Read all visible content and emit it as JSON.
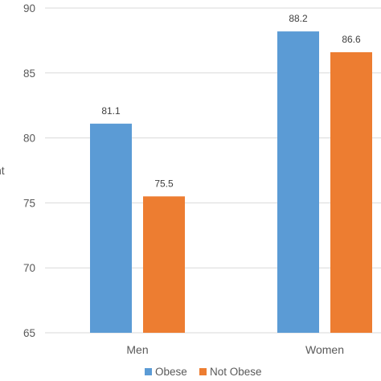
{
  "chart_data": {
    "type": "bar",
    "title": "",
    "xlabel": "",
    "ylabel": "nt",
    "categories": [
      "Men",
      "Women"
    ],
    "series": [
      {
        "name": "Obese",
        "values": [
          81.1,
          88.2
        ],
        "color": "#5B9BD5"
      },
      {
        "name": "Not Obese",
        "values": [
          75.5,
          86.6
        ],
        "color": "#ED7D31"
      }
    ],
    "data_labels": [
      [
        "81.1",
        "88.2"
      ],
      [
        "75.5",
        "86.6"
      ]
    ],
    "ylim": [
      65,
      90
    ],
    "yticks": [
      65,
      70,
      75,
      80,
      85,
      90
    ],
    "grid": true,
    "legend_position": "bottom"
  }
}
